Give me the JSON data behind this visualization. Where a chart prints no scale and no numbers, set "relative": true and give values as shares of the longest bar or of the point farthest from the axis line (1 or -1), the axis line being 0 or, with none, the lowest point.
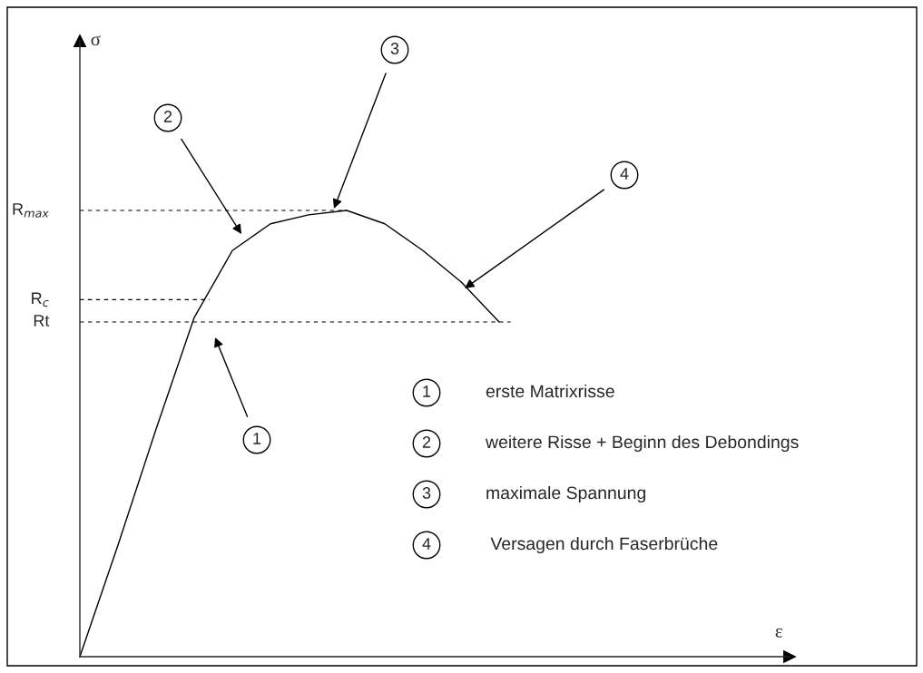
{
  "chart_data": {
    "type": "line",
    "relative": true,
    "categories": [
      null,
      null,
      null,
      null,
      null,
      null,
      null,
      null,
      null,
      null,
      null,
      null
    ],
    "series": [
      {
        "color": "#000000",
        "values": [
          0,
          0.25,
          0.51,
          0.76,
          0.91,
          0.97,
          0.99,
          1.0,
          0.97,
          0.91,
          0.84,
          0.75
        ]
      }
    ],
    "ref_lines": [
      {
        "axis": "y",
        "value": 1.0,
        "label": "R$_{max}$",
        "line_style": "dashed"
      },
      {
        "axis": "y",
        "value": 0.8,
        "label": "R$_{c}$",
        "line_style": "dashed"
      },
      {
        "axis": "y",
        "value": 0.75,
        "label": "Rt",
        "line_style": "dashed"
      }
    ],
    "annotations": [
      "1",
      "2",
      "3",
      "4",
      "erste Matrixrisse",
      "weitere Risse + Beginn des Debondings",
      "maximale Spannung",
      " Versagen durch Faserbrüche",
      "σ",
      "ε"
    ],
    "grid": false,
    "legend": false
  }
}
